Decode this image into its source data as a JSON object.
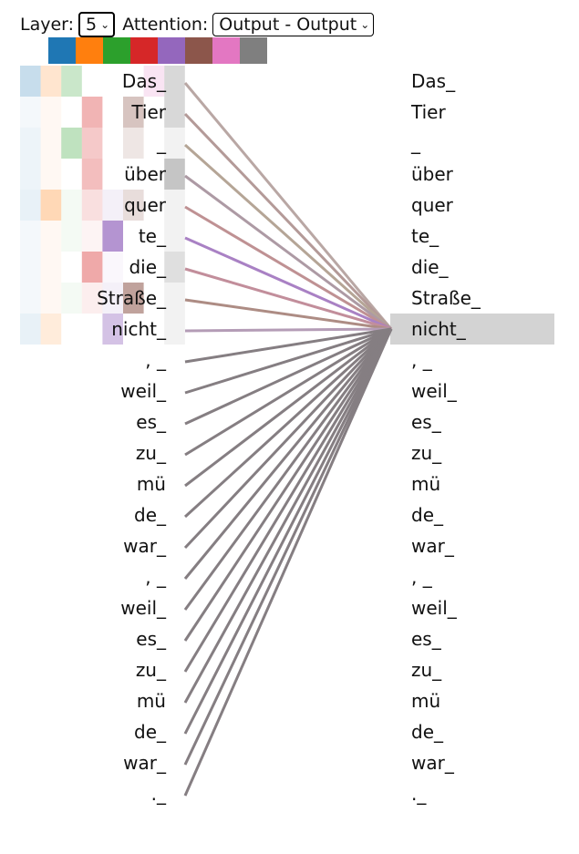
{
  "controls": {
    "layer_label": "Layer:",
    "layer_value": "5",
    "attention_label": "Attention:",
    "attention_value": "Output - Output"
  },
  "head_colors": [
    "#1f77b4",
    "#ff7f0e",
    "#2ca02c",
    "#d62728",
    "#9467bd",
    "#8c564b",
    "#e377c2",
    "#7f7f7f"
  ],
  "left_tokens": [
    "Das_",
    "Tier",
    "_",
    "über",
    "quer",
    "te_",
    "die_",
    "Straße_",
    "nicht_",
    ", _",
    "weil_",
    "es_",
    "zu_",
    "mü",
    "de_",
    "war_",
    ", _",
    "weil_",
    "es_",
    "zu_",
    "mü",
    "de_",
    "war_",
    "._"
  ],
  "right_tokens": [
    "Das_",
    "Tier",
    "_",
    "über",
    "quer",
    "te_",
    "die_",
    "Straße_",
    "nicht_",
    ", _",
    "weil_",
    "es_",
    "zu_",
    "mü",
    "de_",
    "war_",
    ", _",
    "weil_",
    "es_",
    "zu_",
    "mü",
    "de_",
    "war_",
    "._"
  ],
  "selected_right_index": 8,
  "heatmap": [
    [
      0.25,
      0.2,
      0.25,
      0.0,
      0.0,
      0.0,
      0.2,
      0.3
    ],
    [
      0.05,
      0.05,
      0.0,
      0.35,
      0.0,
      0.35,
      0.0,
      0.3
    ],
    [
      0.08,
      0.05,
      0.3,
      0.25,
      0.0,
      0.15,
      0.0,
      0.1
    ],
    [
      0.08,
      0.05,
      0.0,
      0.3,
      0.0,
      0.0,
      0.0,
      0.45
    ],
    [
      0.1,
      0.3,
      0.05,
      0.15,
      0.1,
      0.2,
      0.0,
      0.1
    ],
    [
      0.05,
      0.05,
      0.05,
      0.05,
      0.7,
      0.0,
      0.0,
      0.1
    ],
    [
      0.05,
      0.05,
      0.0,
      0.4,
      0.05,
      0.0,
      0.0,
      0.25
    ],
    [
      0.05,
      0.05,
      0.05,
      0.08,
      0.1,
      0.55,
      0.0,
      0.1
    ],
    [
      0.1,
      0.15,
      0.0,
      0.0,
      0.4,
      0.0,
      0.0,
      0.1
    ]
  ],
  "line_colors": [
    "#b9a7a4",
    "#b49a98",
    "#b5a596",
    "#ad9aa4",
    "#bf9193",
    "#a981c4",
    "#c28e9b",
    "#ad8c84",
    "#b49cb6",
    "#857e82",
    "#857e82",
    "#857e82",
    "#857e82",
    "#857e82",
    "#857e82",
    "#857e82",
    "#857e82",
    "#857e82",
    "#857e82",
    "#857e82",
    "#857e82",
    "#857e82",
    "#857e82",
    "#857e82"
  ]
}
